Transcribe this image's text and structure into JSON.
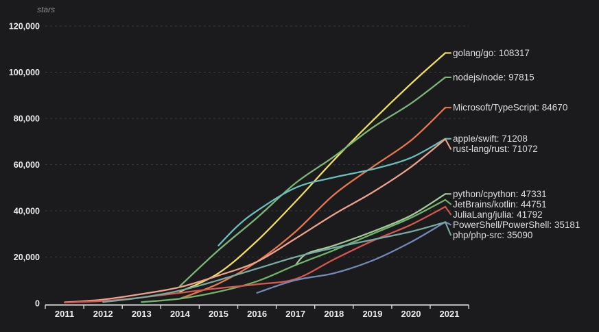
{
  "chart_style": {
    "background": "#1b1b1e",
    "grid_color": "#3a3a3f",
    "axis_color": "#d9d9d9",
    "tick_label_color": "#ececec",
    "series_label_color": "#dedede",
    "axis_title_color": "#8f8f8f"
  },
  "chart_data": {
    "type": "line",
    "title": "",
    "ylabel": "stars",
    "xlabel": "",
    "legend_position": "right-edge-labels",
    "grid": "horizontal-dashed",
    "ylim": [
      0,
      120000
    ],
    "xlim": [
      2010.5,
      2021.5
    ],
    "y_ticks": [
      {
        "value": 0,
        "label": "0"
      },
      {
        "value": 20000,
        "label": "20,000"
      },
      {
        "value": 40000,
        "label": "40,000"
      },
      {
        "value": 60000,
        "label": "60,000"
      },
      {
        "value": 80000,
        "label": "80,000"
      },
      {
        "value": 100000,
        "label": "100,000"
      },
      {
        "value": 120000,
        "label": "120,000"
      }
    ],
    "x_ticks": [
      "2011",
      "2012",
      "2013",
      "2014",
      "2015",
      "2016",
      "2017",
      "2018",
      "2019",
      "2020",
      "2021"
    ],
    "series": [
      {
        "name": "golang/go",
        "final_value": 108317,
        "label": "golang/go: 108317",
        "color": "#f0de62",
        "points": [
          [
            2014,
            5000
          ],
          [
            2015,
            13000
          ],
          [
            2016,
            27000
          ],
          [
            2017,
            44000
          ],
          [
            2018,
            62000
          ],
          [
            2019,
            79000
          ],
          [
            2020,
            95000
          ],
          [
            2021,
            108317
          ]
        ]
      },
      {
        "name": "nodejs/node",
        "final_value": 97815,
        "label": "nodejs/node: 97815",
        "color": "#7db577",
        "points": [
          [
            2014,
            7500
          ],
          [
            2015,
            23000
          ],
          [
            2016,
            37000
          ],
          [
            2017,
            52000
          ],
          [
            2018,
            63500
          ],
          [
            2019,
            76000
          ],
          [
            2020,
            86500
          ],
          [
            2021,
            97815
          ]
        ]
      },
      {
        "name": "Microsoft/TypeScript",
        "final_value": 84670,
        "label": "Microsoft/TypeScript: 84670",
        "color": "#e8774d",
        "points": [
          [
            2014,
            2000
          ],
          [
            2015,
            8500
          ],
          [
            2016,
            18000
          ],
          [
            2017,
            31000
          ],
          [
            2018,
            47000
          ],
          [
            2019,
            59000
          ],
          [
            2020,
            70500
          ],
          [
            2021,
            84670
          ]
        ]
      },
      {
        "name": "apple/swift",
        "final_value": 71208,
        "label": "apple/swift: 71208",
        "color": "#68bfbc",
        "points": [
          [
            2015,
            25000
          ],
          [
            2015.5,
            33500
          ],
          [
            2016,
            40000
          ],
          [
            2017,
            50000
          ],
          [
            2018,
            54500
          ],
          [
            2019,
            58000
          ],
          [
            2020,
            63000
          ],
          [
            2021,
            71208
          ]
        ]
      },
      {
        "name": "rust-lang/rust",
        "final_value": 71072,
        "label": "rust-lang/rust: 71072",
        "color": "#eda28c",
        "points": [
          [
            2011,
            400
          ],
          [
            2012,
            1600
          ],
          [
            2013,
            4000
          ],
          [
            2014,
            7000
          ],
          [
            2015,
            12000
          ],
          [
            2016,
            18000
          ],
          [
            2017,
            28000
          ],
          [
            2018,
            38500
          ],
          [
            2019,
            48000
          ],
          [
            2020,
            59000
          ],
          [
            2021,
            71072
          ]
        ]
      },
      {
        "name": "python/cpython",
        "final_value": 47331,
        "label": "python/cpython: 47331",
        "color": "#a5c89b",
        "points": [
          [
            2017,
            16500
          ],
          [
            2017.3,
            21500
          ],
          [
            2018,
            25000
          ],
          [
            2019,
            31000
          ],
          [
            2020,
            38000
          ],
          [
            2021,
            47331
          ]
        ]
      },
      {
        "name": "JetBrains/kotlin",
        "final_value": 44751,
        "label": "JetBrains/kotlin: 44751",
        "color": "#70b46a",
        "points": [
          [
            2013,
            500
          ],
          [
            2014,
            2000
          ],
          [
            2015,
            5000
          ],
          [
            2016,
            9500
          ],
          [
            2017,
            16500
          ],
          [
            2018,
            23000
          ],
          [
            2019,
            30000
          ],
          [
            2020,
            37000
          ],
          [
            2021,
            44751
          ]
        ]
      },
      {
        "name": "JuliaLang/julia",
        "final_value": 41792,
        "label": "JuliaLang/julia: 41792",
        "color": "#d6574d",
        "points": [
          [
            2011,
            300
          ],
          [
            2012,
            1000
          ],
          [
            2013,
            2500
          ],
          [
            2014,
            4500
          ],
          [
            2015,
            6500
          ],
          [
            2016,
            8200
          ],
          [
            2017,
            10500
          ],
          [
            2018,
            19000
          ],
          [
            2019,
            27000
          ],
          [
            2020,
            34000
          ],
          [
            2021,
            41792
          ]
        ]
      },
      {
        "name": "PowerShell/PowerShell",
        "final_value": 35181,
        "label": "PowerShell/PowerShell: 35181",
        "color": "#7289b8",
        "points": [
          [
            2016,
            4500
          ],
          [
            2017,
            10000
          ],
          [
            2018,
            13000
          ],
          [
            2019,
            18500
          ],
          [
            2020,
            26500
          ],
          [
            2021,
            35181
          ]
        ]
      },
      {
        "name": "php/php-src",
        "final_value": 35090,
        "label": "php/php-src: 35090",
        "color": "#76aba2",
        "points": [
          [
            2012,
            500
          ],
          [
            2013,
            2500
          ],
          [
            2014,
            5500
          ],
          [
            2015,
            10000
          ],
          [
            2016,
            15000
          ],
          [
            2017,
            20000
          ],
          [
            2018,
            24000
          ],
          [
            2019,
            27500
          ],
          [
            2020,
            31000
          ],
          [
            2021,
            35090
          ]
        ]
      }
    ]
  }
}
